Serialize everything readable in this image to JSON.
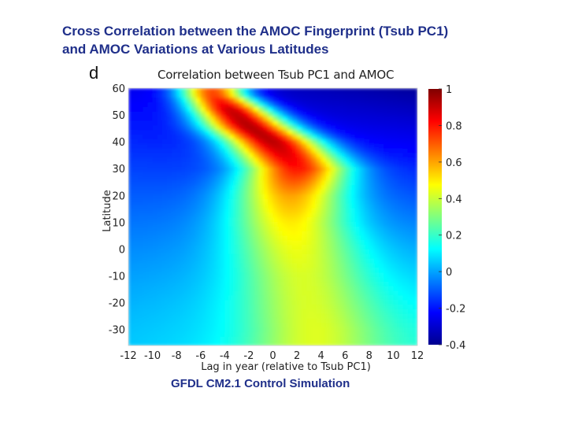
{
  "slide": {
    "title_line1": "Cross Correlation between the AMOC Fingerprint (Tsub PC1)",
    "title_line2": "and AMOC Variations at Various Latitudes",
    "caption": "GFDL CM2.1 Control Simulation",
    "panel_letter": "d"
  },
  "chart_data": {
    "type": "heatmap",
    "title": "Correlation between Tsub PC1 and AMOC",
    "xlabel": "Lag in year (relative to Tsub PC1)",
    "ylabel": "Latitude",
    "xlim": [
      -12,
      12
    ],
    "ylim": [
      -36,
      60
    ],
    "x_ticks": [
      -12,
      -10,
      -8,
      -6,
      -4,
      -2,
      0,
      2,
      4,
      6,
      8,
      10,
      12
    ],
    "y_ticks": [
      60,
      50,
      40,
      30,
      20,
      10,
      0,
      -10,
      -20,
      -30
    ],
    "colorbar": {
      "range": [
        -0.4,
        1
      ],
      "ticks": [
        1,
        0.8,
        0.6,
        0.4,
        0.2,
        0,
        -0.2,
        -0.4
      ],
      "tick_labels": [
        "1",
        "0.8",
        "0.6",
        "0.4",
        "0.2",
        "0",
        "-0.2",
        "-0.4"
      ],
      "colormap": "jet"
    },
    "ridge": [
      {
        "lat": 58,
        "lag": -5.0,
        "peak": 0.72,
        "width": 2.0
      },
      {
        "lat": 52,
        "lag": -3.5,
        "peak": 0.9,
        "width": 2.3
      },
      {
        "lat": 46,
        "lag": -2.0,
        "peak": 0.93,
        "width": 2.6
      },
      {
        "lat": 40,
        "lag": 0.0,
        "peak": 0.92,
        "width": 2.8
      },
      {
        "lat": 34,
        "lag": 1.3,
        "peak": 0.85,
        "width": 3.0
      },
      {
        "lat": 30,
        "lag": 2.0,
        "peak": 0.8,
        "width": 3.1
      },
      {
        "lat": 20,
        "lag": 1.5,
        "peak": 0.6,
        "width": 3.4
      },
      {
        "lat": 10,
        "lag": 1.5,
        "peak": 0.5,
        "width": 3.6
      },
      {
        "lat": 0,
        "lag": 2.0,
        "peak": 0.45,
        "width": 3.8
      },
      {
        "lat": -10,
        "lag": 2.5,
        "peak": 0.42,
        "width": 3.9
      },
      {
        "lat": -20,
        "lag": 3.0,
        "peak": 0.42,
        "width": 4.0
      },
      {
        "lat": -30,
        "lag": 3.5,
        "peak": 0.43,
        "width": 4.0
      },
      {
        "lat": -36,
        "lag": 3.5,
        "peak": 0.43,
        "width": 4.0
      }
    ],
    "background": {
      "north_left": -0.25,
      "north_right": -0.38,
      "south_left": 0.05,
      "south_right": 0.15
    }
  }
}
